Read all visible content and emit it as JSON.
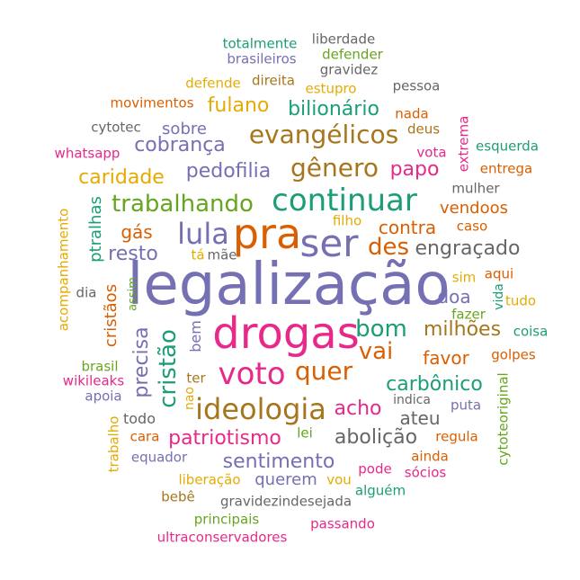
{
  "palette": {
    "teal": "#1b9e77",
    "orange": "#d95f02",
    "purple": "#7570b3",
    "pink": "#e7298a",
    "green": "#66a61e",
    "gold": "#e6ab02",
    "brown": "#a6761d",
    "gray": "#666666"
  },
  "words": [
    {
      "text": "legalização",
      "color": "purple"
    },
    {
      "text": "drogas",
      "color": "pink"
    },
    {
      "text": "pra",
      "color": "orange"
    },
    {
      "text": "ser",
      "color": "purple"
    },
    {
      "text": "continuar",
      "color": "teal"
    },
    {
      "text": "voto",
      "color": "pink"
    },
    {
      "text": "ideologia",
      "color": "brown"
    },
    {
      "text": "lula",
      "color": "purple"
    },
    {
      "text": "quer",
      "color": "orange"
    },
    {
      "text": "evangélicos",
      "color": "brown"
    },
    {
      "text": "gênero",
      "color": "brown"
    },
    {
      "text": "trabalhando",
      "color": "green"
    },
    {
      "text": "bom",
      "color": "teal"
    },
    {
      "text": "vai",
      "color": "orange"
    },
    {
      "text": "des",
      "color": "orange"
    },
    {
      "text": "cristão",
      "color": "teal"
    },
    {
      "text": "abolição",
      "color": "gray"
    },
    {
      "text": "patriotismo",
      "color": "pink"
    },
    {
      "text": "acho",
      "color": "pink"
    },
    {
      "text": "sentimento",
      "color": "purple"
    },
    {
      "text": "cobrança",
      "color": "purple"
    },
    {
      "text": "pedofilia",
      "color": "purple"
    },
    {
      "text": "bilionário",
      "color": "teal"
    },
    {
      "text": "fulano",
      "color": "gold"
    },
    {
      "text": "papo",
      "color": "pink"
    },
    {
      "text": "engraçado",
      "color": "gray"
    },
    {
      "text": "caridade",
      "color": "gold"
    },
    {
      "text": "carbônico",
      "color": "teal"
    },
    {
      "text": "milhões",
      "color": "brown"
    },
    {
      "text": "resto",
      "color": "purple"
    },
    {
      "text": "precisa",
      "color": "purple"
    },
    {
      "text": "contra",
      "color": "orange"
    },
    {
      "text": "ateu",
      "color": "gray"
    },
    {
      "text": "favor",
      "color": "orange"
    },
    {
      "text": "querem",
      "color": "purple"
    },
    {
      "text": "vendoos",
      "color": "orange"
    },
    {
      "text": "doa",
      "color": "purple"
    },
    {
      "text": "gás",
      "color": "orange"
    },
    {
      "text": "sobre",
      "color": "purple"
    },
    {
      "text": "cristãos",
      "color": "orange"
    },
    {
      "text": "ptralhas",
      "color": "teal"
    },
    {
      "text": "bem",
      "color": "purple"
    },
    {
      "text": "todo",
      "color": "gray"
    },
    {
      "text": "mulher",
      "color": "gray"
    },
    {
      "text": "caso",
      "color": "orange"
    },
    {
      "text": "pode",
      "color": "pink"
    },
    {
      "text": "sócios",
      "color": "pink"
    },
    {
      "text": "ainda",
      "color": "orange"
    },
    {
      "text": "alguém",
      "color": "teal"
    },
    {
      "text": "cara",
      "color": "orange"
    },
    {
      "text": "equador",
      "color": "purple"
    },
    {
      "text": "liberação",
      "color": "gold"
    },
    {
      "text": "vou",
      "color": "gold"
    },
    {
      "text": "regula",
      "color": "orange"
    },
    {
      "text": "lei",
      "color": "green"
    },
    {
      "text": "puta",
      "color": "purple"
    },
    {
      "text": "indica",
      "color": "gray"
    },
    {
      "text": "nao",
      "color": "gold"
    },
    {
      "text": "ter",
      "color": "brown"
    },
    {
      "text": "apoia",
      "color": "purple"
    },
    {
      "text": "wikileaks",
      "color": "pink"
    },
    {
      "text": "brasil",
      "color": "green"
    },
    {
      "text": "golpes",
      "color": "orange"
    },
    {
      "text": "coisa",
      "color": "teal"
    },
    {
      "text": "fazer",
      "color": "green"
    },
    {
      "text": "tudo",
      "color": "gold"
    },
    {
      "text": "vida",
      "color": "teal"
    },
    {
      "text": "aqui",
      "color": "orange"
    },
    {
      "text": "sim",
      "color": "gold"
    },
    {
      "text": "dia",
      "color": "gray"
    },
    {
      "text": "assim",
      "color": "green"
    },
    {
      "text": "tá",
      "color": "gold"
    },
    {
      "text": "mãe",
      "color": "gray"
    },
    {
      "text": "filho",
      "color": "gold"
    },
    {
      "text": "entrega",
      "color": "orange"
    },
    {
      "text": "esquerda",
      "color": "teal"
    },
    {
      "text": "vota",
      "color": "pink"
    },
    {
      "text": "deus",
      "color": "brown"
    },
    {
      "text": "nada",
      "color": "orange"
    },
    {
      "text": "extrema",
      "color": "pink"
    },
    {
      "text": "whatsapp",
      "color": "pink"
    },
    {
      "text": "cytotec",
      "color": "gray"
    },
    {
      "text": "movimentos",
      "color": "orange"
    },
    {
      "text": "defende",
      "color": "gold"
    },
    {
      "text": "direita",
      "color": "brown"
    },
    {
      "text": "estupro",
      "color": "gold"
    },
    {
      "text": "pessoa",
      "color": "gray"
    },
    {
      "text": "totalmente",
      "color": "teal"
    },
    {
      "text": "liberdade",
      "color": "gray"
    },
    {
      "text": "brasileiros",
      "color": "purple"
    },
    {
      "text": "defender",
      "color": "green"
    },
    {
      "text": "gravidez",
      "color": "gray"
    },
    {
      "text": "acompanhamento",
      "color": "gold"
    },
    {
      "text": "trabalho",
      "color": "gold"
    },
    {
      "text": "cytoteoriginal",
      "color": "green"
    },
    {
      "text": "bebê",
      "color": "brown"
    },
    {
      "text": "gravidezindesejada",
      "color": "gray"
    },
    {
      "text": "principais",
      "color": "green"
    },
    {
      "text": "passando",
      "color": "pink"
    },
    {
      "text": "ultraconservadores",
      "color": "pink"
    }
  ]
}
